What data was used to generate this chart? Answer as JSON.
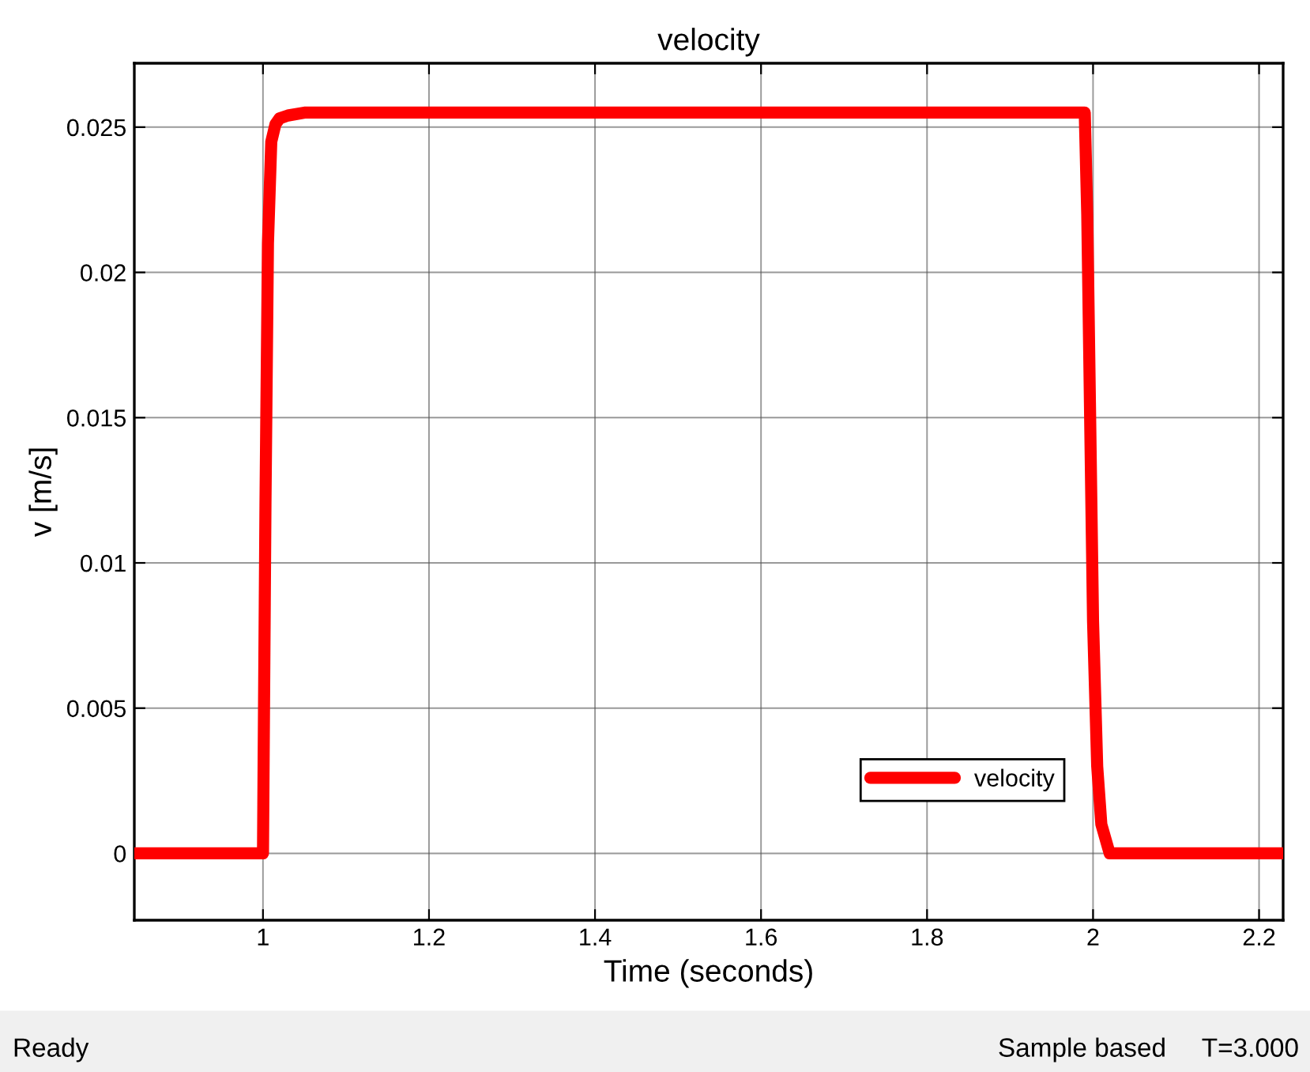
{
  "chart_data": {
    "type": "line",
    "title": "velocity",
    "xlabel": "Time (seconds)",
    "ylabel": "v [m/s]",
    "x": [
      0.845,
      1.0,
      1.003,
      1.006,
      1.01,
      1.015,
      1.02,
      1.03,
      1.05,
      1.5,
      1.99,
      1.993,
      1.997,
      2.0,
      2.005,
      2.01,
      2.02,
      2.229
    ],
    "series": [
      {
        "name": "velocity",
        "color": "#ff0000",
        "values": [
          0,
          0,
          0.012,
          0.021,
          0.0245,
          0.0251,
          0.0253,
          0.0254,
          0.0255,
          0.0255,
          0.0255,
          0.022,
          0.014,
          0.008,
          0.003,
          0.001,
          0,
          0
        ]
      }
    ],
    "xlim": [
      0.845,
      2.229
    ],
    "ylim": [
      -0.0023,
      0.0272
    ],
    "xticks": [
      1,
      1.2,
      1.4,
      1.6,
      1.8,
      2,
      2.2
    ],
    "yticks": [
      0,
      0.005,
      0.01,
      0.015,
      0.02,
      0.025
    ],
    "grid": true,
    "legend": "bottom right",
    "marker": "none",
    "line_style": "solid",
    "annotations": [
      "Ready",
      "Sample based",
      "T=3.000"
    ]
  }
}
